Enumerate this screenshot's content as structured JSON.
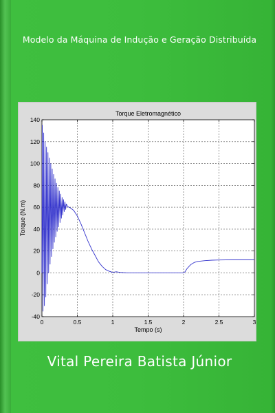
{
  "cover": {
    "title": "Modelo da Máquina de Indução e Geração Distribuída",
    "author": "Vital Pereira Batista Júnior",
    "background_color": "#3dbd3d",
    "text_color": "#ffffff"
  },
  "chart_data": {
    "type": "line",
    "title": "Torque Eletromagnético",
    "xlabel": "Tempo (s)",
    "ylabel": "Torque (N.m)",
    "xlim": [
      0,
      3
    ],
    "ylim": [
      -40,
      140
    ],
    "x_ticks": [
      0,
      0.5,
      1,
      1.5,
      2,
      2.5,
      3
    ],
    "x_tick_labels": [
      "0",
      "0.5",
      "1",
      "1.5",
      "2",
      "2.5",
      "3"
    ],
    "y_ticks": [
      -40,
      -20,
      0,
      20,
      40,
      60,
      80,
      100,
      120,
      140
    ],
    "y_tick_labels": [
      "-40",
      "-20",
      "0",
      "20",
      "40",
      "60",
      "80",
      "100",
      "120",
      "140"
    ],
    "grid": true,
    "line_color": "#3333cc",
    "series": [
      {
        "points": [
          [
            0,
            0
          ],
          [
            0.005,
            135
          ],
          [
            0.015,
            -35
          ],
          [
            0.025,
            128
          ],
          [
            0.035,
            -30
          ],
          [
            0.045,
            120
          ],
          [
            0.055,
            -22
          ],
          [
            0.065,
            115
          ],
          [
            0.075,
            -10
          ],
          [
            0.085,
            110
          ],
          [
            0.095,
            0
          ],
          [
            0.105,
            105
          ],
          [
            0.115,
            8
          ],
          [
            0.125,
            100
          ],
          [
            0.135,
            15
          ],
          [
            0.145,
            95
          ],
          [
            0.155,
            22
          ],
          [
            0.165,
            90
          ],
          [
            0.175,
            28
          ],
          [
            0.185,
            86
          ],
          [
            0.195,
            33
          ],
          [
            0.205,
            82
          ],
          [
            0.215,
            38
          ],
          [
            0.225,
            78
          ],
          [
            0.235,
            42
          ],
          [
            0.245,
            75
          ],
          [
            0.255,
            46
          ],
          [
            0.265,
            72
          ],
          [
            0.275,
            50
          ],
          [
            0.285,
            69
          ],
          [
            0.295,
            53
          ],
          [
            0.305,
            67
          ],
          [
            0.315,
            56
          ],
          [
            0.325,
            65
          ],
          [
            0.335,
            58
          ],
          [
            0.345,
            63
          ],
          [
            0.36,
            61
          ],
          [
            0.38,
            60
          ],
          [
            0.4,
            59.5
          ],
          [
            0.45,
            57
          ],
          [
            0.5,
            52
          ],
          [
            0.55,
            45
          ],
          [
            0.6,
            37
          ],
          [
            0.65,
            29
          ],
          [
            0.7,
            22
          ],
          [
            0.75,
            16
          ],
          [
            0.8,
            10
          ],
          [
            0.85,
            6
          ],
          [
            0.9,
            3
          ],
          [
            0.95,
            1.5
          ],
          [
            1.0,
            0.5
          ],
          [
            1.05,
            1
          ],
          [
            1.1,
            0.5
          ],
          [
            1.15,
            0.2
          ],
          [
            1.2,
            0
          ],
          [
            1.5,
            0
          ],
          [
            1.8,
            0
          ],
          [
            2.0,
            0
          ],
          [
            2.02,
            1
          ],
          [
            2.05,
            4
          ],
          [
            2.1,
            7.5
          ],
          [
            2.15,
            9.5
          ],
          [
            2.2,
            10.5
          ],
          [
            2.3,
            11.2
          ],
          [
            2.4,
            11.6
          ],
          [
            2.5,
            11.8
          ],
          [
            2.7,
            12
          ],
          [
            3.0,
            12
          ]
        ]
      }
    ]
  }
}
